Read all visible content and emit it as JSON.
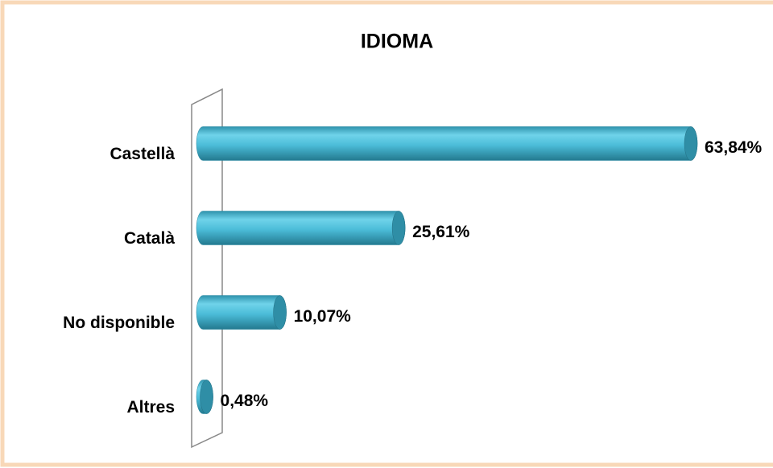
{
  "chart_data": {
    "type": "bar",
    "orientation": "horizontal",
    "title": "IDIOMA",
    "categories": [
      "Castellà",
      "Català",
      "No disponible",
      "Altres"
    ],
    "values": [
      63.84,
      25.61,
      10.07,
      0.48
    ],
    "value_labels": [
      "63,84%",
      "25,61%",
      "10,07%",
      "0,48%"
    ],
    "color": "#4bbcd8"
  }
}
